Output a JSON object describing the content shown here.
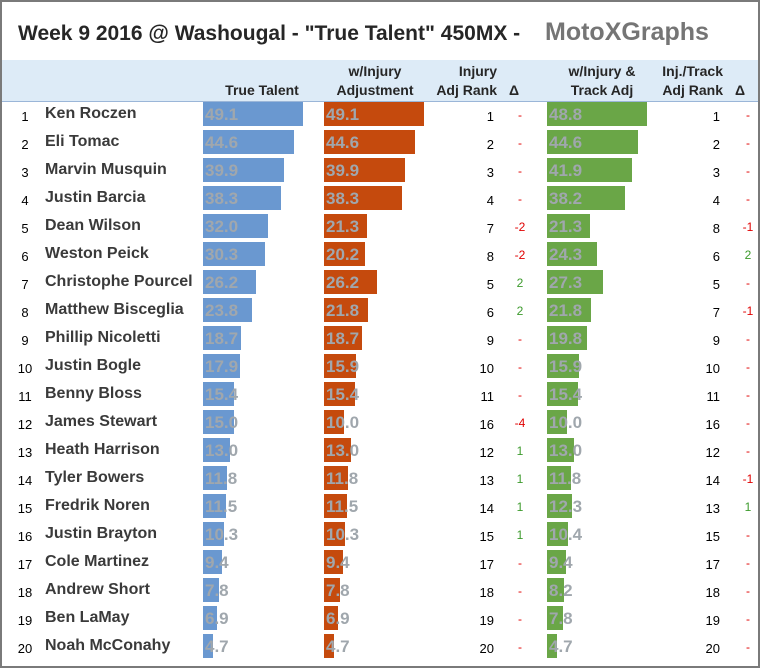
{
  "title": "Week 9 2016 @ Washougal - \"True Talent\" 450MX  -",
  "brand": "MotoXGraphs",
  "colors": {
    "header_bg": "#ddebf7",
    "true_talent": "#6a98d0",
    "injury": "#c54a0d",
    "track": "#6aa647",
    "delta_neg": "#e00000",
    "delta_pos": "#3c9a2c",
    "delta_zero": "#e00000",
    "divider": "#9bb6d8"
  },
  "headers": {
    "true_talent": "True Talent",
    "injury_adj": [
      "w/Injury",
      "Adjustment"
    ],
    "injury_rank": [
      "Injury",
      "Adj Rank"
    ],
    "delta1": "Δ",
    "track_adj": [
      "w/Injury &",
      "Track Adj"
    ],
    "track_rank": [
      "Inj./Track",
      "Adj Rank"
    ],
    "delta2": "Δ"
  },
  "chart_data": {
    "type": "bar",
    "title": "Week 9 2016 @ Washougal - \"True Talent\" 450MX",
    "series": [
      {
        "name": "True Talent",
        "values": [
          49.1,
          44.6,
          39.9,
          38.3,
          32.0,
          30.3,
          26.2,
          23.8,
          18.7,
          17.9,
          15.4,
          15.0,
          13.0,
          11.8,
          11.5,
          10.3,
          9.4,
          7.8,
          6.9,
          4.7
        ]
      },
      {
        "name": "w/Injury Adjustment",
        "values": [
          49.1,
          44.6,
          39.9,
          38.3,
          21.3,
          20.2,
          26.2,
          21.8,
          18.7,
          15.9,
          15.4,
          10.0,
          13.0,
          11.8,
          11.5,
          10.3,
          9.4,
          7.8,
          6.9,
          4.7
        ]
      },
      {
        "name": "w/Injury & Track Adj",
        "values": [
          48.8,
          44.6,
          41.9,
          38.2,
          21.3,
          24.3,
          27.3,
          21.8,
          19.8,
          15.9,
          15.4,
          10.0,
          13.0,
          11.8,
          12.3,
          10.4,
          9.4,
          8.2,
          7.8,
          4.7
        ]
      }
    ],
    "xlim": [
      0,
      50
    ]
  },
  "rows": [
    {
      "rank": "1",
      "name": "Ken Roczen",
      "tt": "49.1",
      "inj": "49.1",
      "inj_rank": "1",
      "d1": "-",
      "trk": "48.8",
      "trk_rank": "1",
      "d2": "-"
    },
    {
      "rank": "2",
      "name": "Eli Tomac",
      "tt": "44.6",
      "inj": "44.6",
      "inj_rank": "2",
      "d1": "-",
      "trk": "44.6",
      "trk_rank": "2",
      "d2": "-"
    },
    {
      "rank": "3",
      "name": "Marvin Musquin",
      "tt": "39.9",
      "inj": "39.9",
      "inj_rank": "3",
      "d1": "-",
      "trk": "41.9",
      "trk_rank": "3",
      "d2": "-"
    },
    {
      "rank": "4",
      "name": "Justin Barcia",
      "tt": "38.3",
      "inj": "38.3",
      "inj_rank": "4",
      "d1": "-",
      "trk": "38.2",
      "trk_rank": "4",
      "d2": "-"
    },
    {
      "rank": "5",
      "name": "Dean Wilson",
      "tt": "32.0",
      "inj": "21.3",
      "inj_rank": "7",
      "d1": "-2",
      "trk": "21.3",
      "trk_rank": "8",
      "d2": "-1"
    },
    {
      "rank": "6",
      "name": "Weston Peick",
      "tt": "30.3",
      "inj": "20.2",
      "inj_rank": "8",
      "d1": "-2",
      "trk": "24.3",
      "trk_rank": "6",
      "d2": "2"
    },
    {
      "rank": "7",
      "name": "Christophe Pourcel",
      "tt": "26.2",
      "inj": "26.2",
      "inj_rank": "5",
      "d1": "2",
      "trk": "27.3",
      "trk_rank": "5",
      "d2": "-"
    },
    {
      "rank": "8",
      "name": "Matthew Bisceglia",
      "tt": "23.8",
      "inj": "21.8",
      "inj_rank": "6",
      "d1": "2",
      "trk": "21.8",
      "trk_rank": "7",
      "d2": "-1"
    },
    {
      "rank": "9",
      "name": "Phillip Nicoletti",
      "tt": "18.7",
      "inj": "18.7",
      "inj_rank": "9",
      "d1": "-",
      "trk": "19.8",
      "trk_rank": "9",
      "d2": "-"
    },
    {
      "rank": "10",
      "name": "Justin Bogle",
      "tt": "17.9",
      "inj": "15.9",
      "inj_rank": "10",
      "d1": "-",
      "trk": "15.9",
      "trk_rank": "10",
      "d2": "-"
    },
    {
      "rank": "11",
      "name": "Benny Bloss",
      "tt": "15.4",
      "inj": "15.4",
      "inj_rank": "11",
      "d1": "-",
      "trk": "15.4",
      "trk_rank": "11",
      "d2": "-"
    },
    {
      "rank": "12",
      "name": "James Stewart",
      "tt": "15.0",
      "inj": "10.0",
      "inj_rank": "16",
      "d1": "-4",
      "trk": "10.0",
      "trk_rank": "16",
      "d2": "-"
    },
    {
      "rank": "13",
      "name": "Heath Harrison",
      "tt": "13.0",
      "inj": "13.0",
      "inj_rank": "12",
      "d1": "1",
      "trk": "13.0",
      "trk_rank": "12",
      "d2": "-"
    },
    {
      "rank": "14",
      "name": "Tyler Bowers",
      "tt": "11.8",
      "inj": "11.8",
      "inj_rank": "13",
      "d1": "1",
      "trk": "11.8",
      "trk_rank": "14",
      "d2": "-1"
    },
    {
      "rank": "15",
      "name": "Fredrik Noren",
      "tt": "11.5",
      "inj": "11.5",
      "inj_rank": "14",
      "d1": "1",
      "trk": "12.3",
      "trk_rank": "13",
      "d2": "1"
    },
    {
      "rank": "16",
      "name": "Justin Brayton",
      "tt": "10.3",
      "inj": "10.3",
      "inj_rank": "15",
      "d1": "1",
      "trk": "10.4",
      "trk_rank": "15",
      "d2": "-"
    },
    {
      "rank": "17",
      "name": "Cole Martinez",
      "tt": "9.4",
      "inj": "9.4",
      "inj_rank": "17",
      "d1": "-",
      "trk": "9.4",
      "trk_rank": "17",
      "d2": "-"
    },
    {
      "rank": "18",
      "name": "Andrew Short",
      "tt": "7.8",
      "inj": "7.8",
      "inj_rank": "18",
      "d1": "-",
      "trk": "8.2",
      "trk_rank": "18",
      "d2": "-"
    },
    {
      "rank": "19",
      "name": "Ben LaMay",
      "tt": "6.9",
      "inj": "6.9",
      "inj_rank": "19",
      "d1": "-",
      "trk": "7.8",
      "trk_rank": "19",
      "d2": "-"
    },
    {
      "rank": "20",
      "name": "Noah McConahy",
      "tt": "4.7",
      "inj": "4.7",
      "inj_rank": "20",
      "d1": "-",
      "trk": "4.7",
      "trk_rank": "20",
      "d2": "-"
    }
  ]
}
